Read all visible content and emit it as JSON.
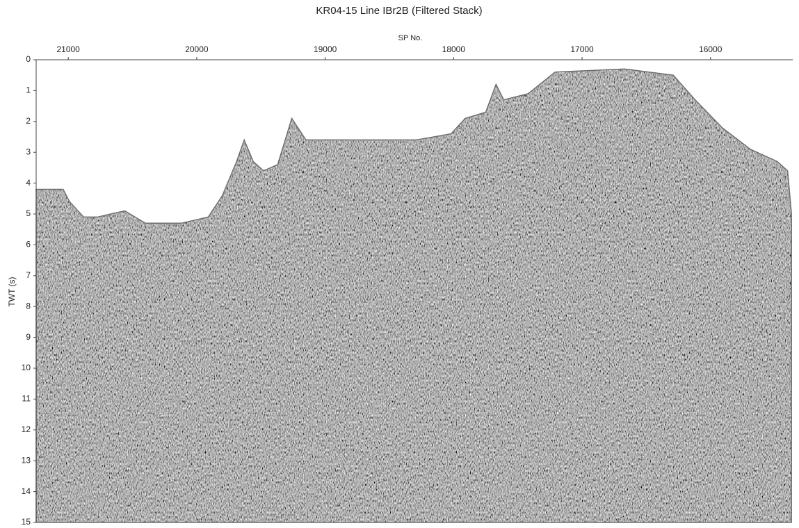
{
  "chart_data": {
    "type": "seismic",
    "title": "KR04-15  Line IBr2B (Filtered Stack)",
    "x_label": "SP No.",
    "y_label": "TWT (s)",
    "xlim": [
      21250,
      15360
    ],
    "xticks": [
      21000,
      20000,
      19000,
      18000,
      17000,
      16000
    ],
    "ylim": [
      0,
      15
    ],
    "yticks": [
      0,
      1,
      2,
      3,
      4,
      5,
      6,
      7,
      8,
      9,
      10,
      11,
      12,
      13,
      14,
      15
    ],
    "color": "#6e6e6e",
    "x": [
      21250,
      21040,
      20990,
      20880,
      20770,
      20670,
      20560,
      20400,
      20120,
      19910,
      19800,
      19690,
      19630,
      19560,
      19480,
      19370,
      19260,
      19150,
      18940,
      18500,
      18290,
      18020,
      17910,
      17750,
      17670,
      17610,
      17420,
      17210,
      16670,
      16290,
      16120,
      15910,
      15690,
      15480,
      15400,
      15370
    ],
    "values": [
      4.2,
      4.2,
      4.6,
      5.1,
      5.1,
      5.0,
      4.9,
      5.3,
      5.3,
      5.1,
      4.4,
      3.3,
      2.6,
      3.3,
      3.6,
      3.4,
      1.9,
      2.6,
      2.6,
      2.6,
      2.6,
      2.4,
      1.9,
      1.7,
      0.8,
      1.3,
      1.1,
      0.4,
      0.3,
      0.5,
      1.3,
      2.2,
      2.9,
      3.3,
      3.6,
      5.0
    ]
  }
}
